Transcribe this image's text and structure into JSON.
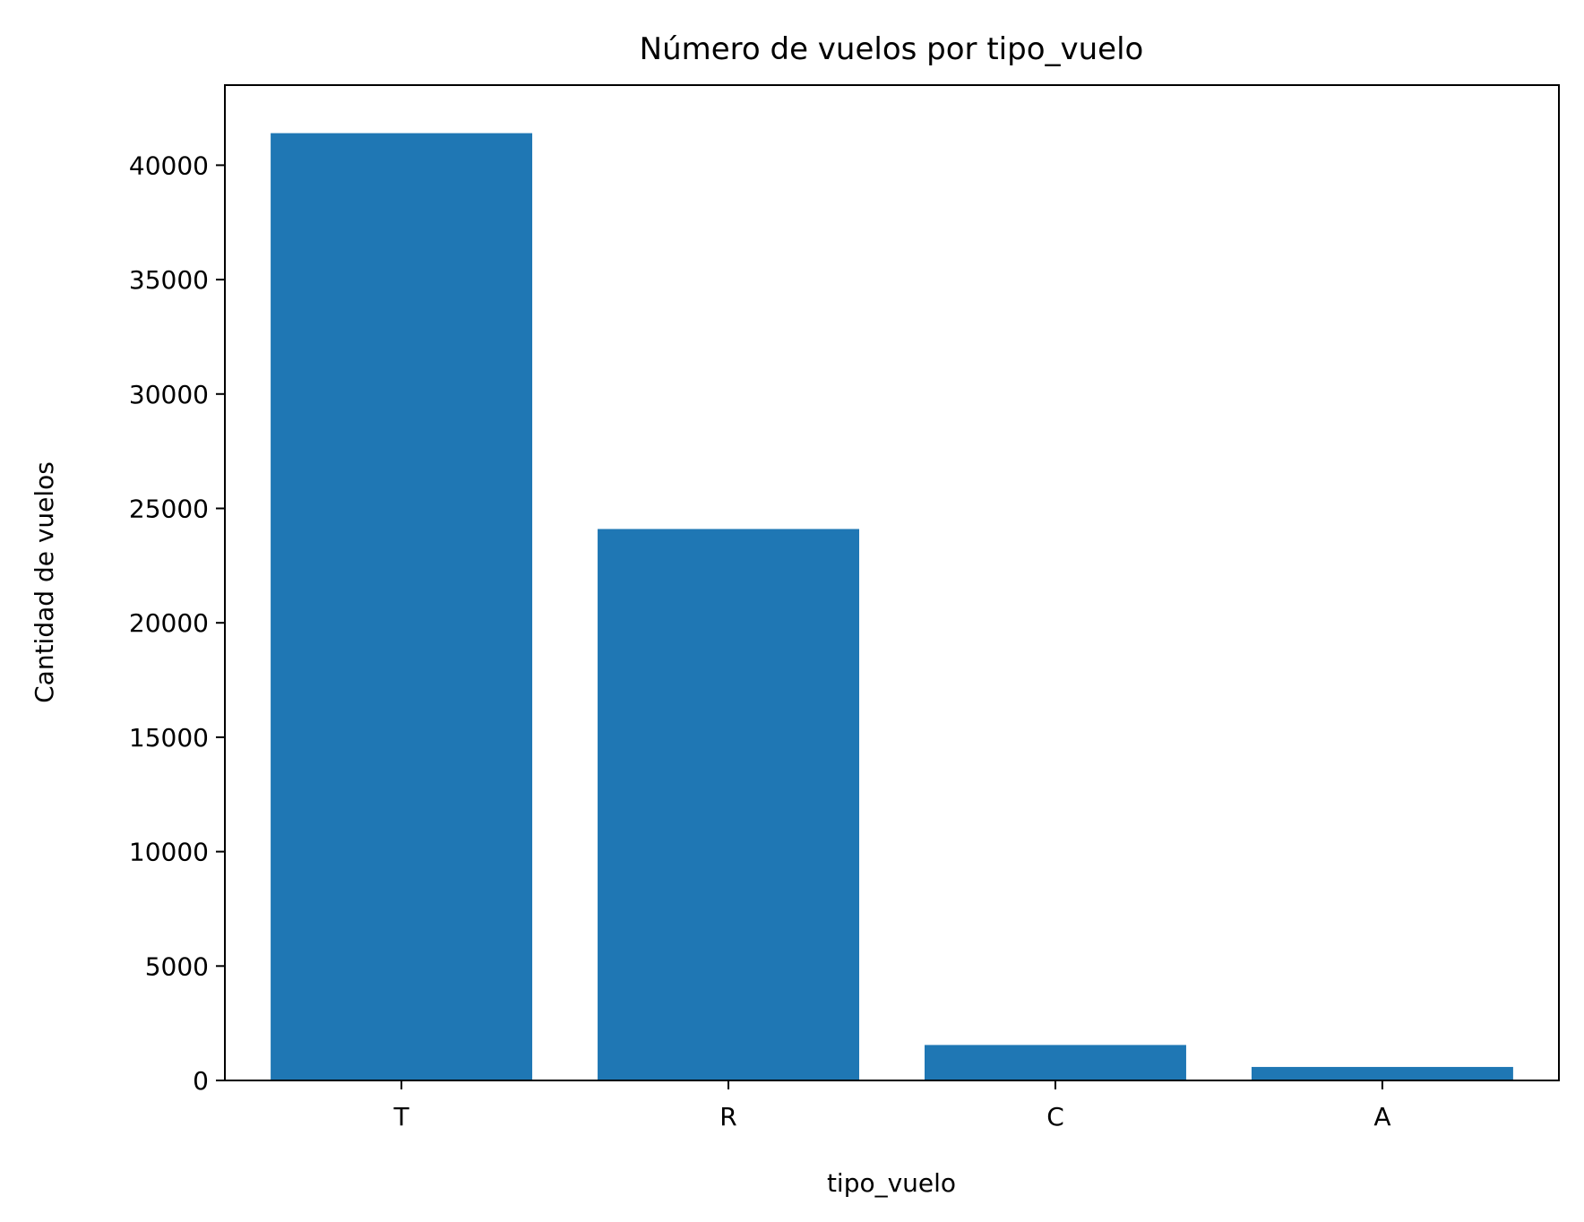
{
  "chart_data": {
    "type": "bar",
    "title": "Número de vuelos por tipo_vuelo",
    "xlabel": "tipo_vuelo",
    "ylabel": "Cantidad de vuelos",
    "categories": [
      "T",
      "R",
      "C",
      "A"
    ],
    "values": [
      41400,
      24100,
      1550,
      590
    ],
    "ylim": [
      0,
      43500
    ],
    "yticks": [
      0,
      5000,
      10000,
      15000,
      20000,
      25000,
      30000,
      35000,
      40000
    ],
    "ytick_labels": [
      "0",
      "5000",
      "10000",
      "15000",
      "20000",
      "25000",
      "30000",
      "35000",
      "40000"
    ],
    "grid": false,
    "legend": "none",
    "bar_color": "#1f77b4"
  }
}
